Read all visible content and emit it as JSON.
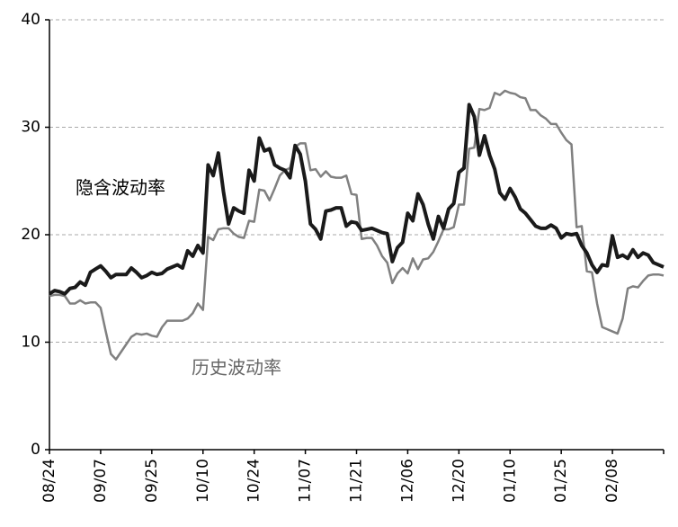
{
  "chart_data": {
    "type": "line",
    "categories": [
      "08/24",
      null,
      null,
      null,
      null,
      null,
      null,
      null,
      null,
      null,
      "09/07",
      null,
      null,
      null,
      null,
      null,
      null,
      null,
      null,
      null,
      "09/25",
      null,
      null,
      null,
      null,
      null,
      null,
      null,
      null,
      null,
      "10/10",
      null,
      null,
      null,
      null,
      null,
      null,
      null,
      null,
      null,
      "10/24",
      null,
      null,
      null,
      null,
      null,
      null,
      null,
      null,
      null,
      "11/07",
      null,
      null,
      null,
      null,
      null,
      null,
      null,
      null,
      null,
      "11/21",
      null,
      null,
      null,
      null,
      null,
      null,
      null,
      null,
      null,
      "12/06",
      null,
      null,
      null,
      null,
      null,
      null,
      null,
      null,
      null,
      "12/20",
      null,
      null,
      null,
      null,
      null,
      null,
      null,
      null,
      null,
      "01/10",
      null,
      null,
      null,
      null,
      null,
      null,
      null,
      null,
      null,
      "01/25",
      null,
      null,
      null,
      null,
      null,
      null,
      null,
      null,
      null,
      "02/08",
      null,
      null,
      null,
      null,
      null,
      null,
      null,
      null,
      null,
      null
    ],
    "series": [
      {
        "name": "隐含波动率",
        "color": "#1a1a1a",
        "values": [
          14.5,
          14.8,
          14.7,
          14.5,
          15.0,
          15.1,
          15.6,
          15.3,
          16.5,
          16.8,
          17.1,
          16.6,
          16.0,
          16.3,
          16.3,
          16.3,
          16.9,
          16.5,
          16.0,
          16.2,
          16.5,
          16.3,
          16.4,
          16.8,
          17.0,
          17.2,
          16.9,
          18.5,
          18.0,
          19.0,
          18.3,
          26.5,
          25.5,
          27.6,
          24.0,
          21.0,
          22.5,
          22.2,
          22.0,
          26.0,
          25.0,
          29.0,
          27.8,
          28.0,
          26.5,
          26.2,
          26.0,
          25.3,
          28.3,
          27.5,
          25.0,
          21.0,
          20.5,
          19.6,
          22.2,
          22.3,
          22.5,
          22.5,
          20.8,
          21.2,
          21.1,
          20.4,
          20.5,
          20.6,
          20.4,
          20.2,
          20.1,
          17.5,
          18.8,
          19.3,
          22.0,
          21.3,
          23.8,
          22.8,
          21.0,
          19.6,
          21.7,
          20.6,
          22.4,
          22.9,
          25.8,
          26.2,
          32.1,
          31.0,
          27.4,
          29.2,
          27.4,
          26.1,
          23.9,
          23.3,
          24.3,
          23.5,
          22.4,
          22.0,
          21.4,
          20.8,
          20.6,
          20.6,
          20.9,
          20.6,
          19.7,
          20.1,
          20.0,
          20.1,
          19.0,
          18.3,
          17.2,
          16.5,
          17.2,
          17.1,
          19.9,
          17.9,
          18.1,
          17.8,
          18.6,
          17.9,
          18.3,
          18.1,
          17.4,
          17.2,
          17.0
        ]
      },
      {
        "name": "历史波动率",
        "color": "#808080",
        "values": [
          14.3,
          14.4,
          14.4,
          14.3,
          13.6,
          13.6,
          13.9,
          13.6,
          13.7,
          13.7,
          13.2,
          11.0,
          8.9,
          8.4,
          9.1,
          9.8,
          10.5,
          10.8,
          10.7,
          10.8,
          10.6,
          10.5,
          11.4,
          12.0,
          12.0,
          12.0,
          12.0,
          12.2,
          12.7,
          13.6,
          13.0,
          19.8,
          19.5,
          20.5,
          20.6,
          20.6,
          20.1,
          19.8,
          19.7,
          21.3,
          21.2,
          24.2,
          24.1,
          23.2,
          24.3,
          25.5,
          26.0,
          26.2,
          28.2,
          28.5,
          28.5,
          26.0,
          26.1,
          25.4,
          25.9,
          25.4,
          25.3,
          25.3,
          25.5,
          23.8,
          23.7,
          19.6,
          19.7,
          19.7,
          19.0,
          18.0,
          17.4,
          15.5,
          16.4,
          16.9,
          16.4,
          17.8,
          16.8,
          17.7,
          17.8,
          18.4,
          19.4,
          20.5,
          20.5,
          20.7,
          22.8,
          22.8,
          28.0,
          28.1,
          31.7,
          31.6,
          31.8,
          33.2,
          33.0,
          33.4,
          33.2,
          33.1,
          32.8,
          32.7,
          31.6,
          31.6,
          31.1,
          30.8,
          30.3,
          30.3,
          29.5,
          28.8,
          28.4,
          20.7,
          20.8,
          16.6,
          16.5,
          13.6,
          11.4,
          11.2,
          11.0,
          10.8,
          12.2,
          15.0,
          15.2,
          15.1,
          15.7,
          16.2,
          16.3,
          16.3,
          16.2
        ]
      }
    ],
    "ylim": [
      0,
      40
    ],
    "yticks": [
      0,
      10,
      20,
      30,
      40
    ],
    "grid": true
  }
}
